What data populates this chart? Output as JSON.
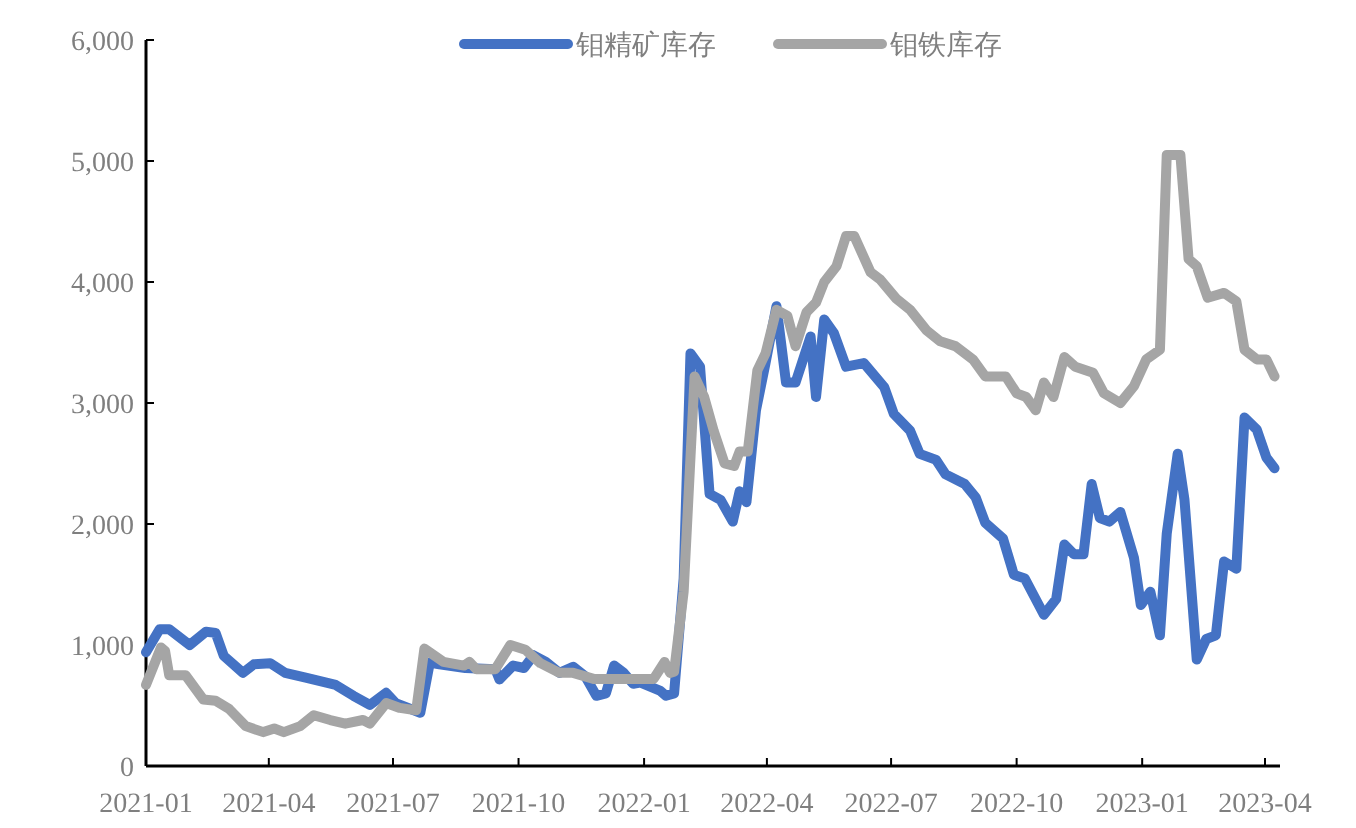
{
  "chart_data": {
    "type": "line",
    "legend": "top",
    "line_style": "solid",
    "xlim": [
      "2021-01-01",
      "2023-04-12"
    ],
    "xticks": [
      "2021-01",
      "2021-04",
      "2021-07",
      "2021-10",
      "2022-01",
      "2022-04",
      "2022-07",
      "2022-10",
      "2023-01",
      "2023-04"
    ],
    "ylim": [
      0,
      6000
    ],
    "yticks": [
      0,
      {
        "value": 1000,
        "label": "1,000"
      },
      {
        "value": 2000,
        "label": "2,000"
      },
      {
        "value": 3000,
        "label": "3,000"
      },
      {
        "value": 4000,
        "label": "4,000"
      },
      {
        "value": 5000,
        "label": "5,000"
      },
      {
        "value": 6000,
        "label": "6,000"
      }
    ],
    "series": [
      {
        "name": "钼精矿库存",
        "color": "#4472c4",
        "x": [
          "2021-01-01",
          "2021-01-11",
          "2021-01-18",
          "2021-02-02",
          "2021-02-14",
          "2021-02-21",
          "2021-02-27",
          "2021-03-13",
          "2021-03-21",
          "2021-04-02",
          "2021-04-13",
          "2021-04-28",
          "2021-05-20",
          "2021-06-02",
          "2021-06-14",
          "2021-06-26",
          "2021-07-03",
          "2021-07-21",
          "2021-07-28",
          "2021-08-04",
          "2021-08-23",
          "2021-09-14",
          "2021-09-17",
          "2021-09-27",
          "2021-10-05",
          "2021-10-12",
          "2021-10-21",
          "2021-10-31",
          "2021-11-10",
          "2021-11-19",
          "2021-11-27",
          "2021-12-04",
          "2021-12-10",
          "2021-12-17",
          "2021-12-24",
          "2021-12-29",
          "2022-01-13",
          "2022-01-17",
          "2022-01-23",
          "2022-01-30",
          "2022-02-04",
          "2022-02-11",
          "2022-02-18",
          "2022-02-26",
          "2022-03-07",
          "2022-03-12",
          "2022-03-17",
          "2022-03-24",
          "2022-03-31",
          "2022-04-08",
          "2022-04-15",
          "2022-04-22",
          "2022-05-03",
          "2022-05-07",
          "2022-05-13",
          "2022-05-20",
          "2022-05-29",
          "2022-06-11",
          "2022-06-26",
          "2022-07-03",
          "2022-07-15",
          "2022-07-22",
          "2022-08-03",
          "2022-08-10",
          "2022-08-24",
          "2022-09-01",
          "2022-09-08",
          "2022-09-21",
          "2022-09-29",
          "2022-10-07",
          "2022-10-21",
          "2022-10-30",
          "2022-11-05",
          "2022-11-12",
          "2022-11-19",
          "2022-11-25",
          "2022-12-01",
          "2022-12-08",
          "2022-12-16",
          "2022-12-26",
          "2022-12-31",
          "2023-01-07",
          "2023-01-14",
          "2023-01-19",
          "2023-01-27",
          "2023-02-01",
          "2023-02-10",
          "2023-02-17",
          "2023-02-24",
          "2023-03-02",
          "2023-03-11",
          "2023-03-17",
          "2023-03-26",
          "2023-04-02",
          "2023-04-08"
        ],
        "values": [
          940,
          1130,
          1130,
          1000,
          1110,
          1100,
          910,
          770,
          840,
          850,
          770,
          730,
          670,
          580,
          505,
          605,
          520,
          440,
          855,
          840,
          810,
          800,
          715,
          830,
          810,
          915,
          860,
          770,
          820,
          740,
          580,
          600,
          830,
          770,
          680,
          690,
          620,
          580,
          600,
          1550,
          3410,
          3300,
          2250,
          2200,
          2020,
          2270,
          2180,
          2940,
          3330,
          3800,
          3170,
          3170,
          3550,
          3050,
          3690,
          3580,
          3300,
          3330,
          3130,
          2910,
          2770,
          2580,
          2530,
          2410,
          2330,
          2220,
          2010,
          1880,
          1580,
          1550,
          1250,
          1380,
          1830,
          1750,
          1750,
          2330,
          2050,
          2020,
          2100,
          1720,
          1330,
          1440,
          1080,
          1920,
          2580,
          2200,
          880,
          1050,
          1080,
          1690,
          1630,
          2880,
          2780,
          2550,
          2460
        ]
      },
      {
        "name": "钼铁库存",
        "color": "#a5a5a5",
        "x": [
          "2021-01-01",
          "2021-01-12",
          "2021-01-15",
          "2021-01-18",
          "2021-01-30",
          "2021-02-12",
          "2021-02-21",
          "2021-03-03",
          "2021-03-15",
          "2021-03-28",
          "2021-04-05",
          "2021-04-12",
          "2021-04-24",
          "2021-05-04",
          "2021-05-16",
          "2021-05-27",
          "2021-06-09",
          "2021-06-14",
          "2021-06-26",
          "2021-07-06",
          "2021-07-18",
          "2021-07-24",
          "2021-08-07",
          "2021-08-22",
          "2021-08-26",
          "2021-08-31",
          "2021-09-14",
          "2021-09-25",
          "2021-10-06",
          "2021-10-17",
          "2021-10-31",
          "2021-11-10",
          "2021-11-25",
          "2021-12-24",
          "2022-01-08",
          "2022-01-16",
          "2022-01-20",
          "2022-01-23",
          "2022-01-30",
          "2022-02-07",
          "2022-02-14",
          "2022-02-21",
          "2022-03-01",
          "2022-03-08",
          "2022-03-12",
          "2022-03-18",
          "2022-03-25",
          "2022-03-31",
          "2022-04-08",
          "2022-04-16",
          "2022-04-22",
          "2022-04-30",
          "2022-05-07",
          "2022-05-13",
          "2022-05-22",
          "2022-05-29",
          "2022-06-04",
          "2022-06-16",
          "2022-06-23",
          "2022-07-05",
          "2022-07-15",
          "2022-07-27",
          "2022-08-06",
          "2022-08-17",
          "2022-08-30",
          "2022-09-08",
          "2022-09-23",
          "2022-10-01",
          "2022-10-08",
          "2022-10-15",
          "2022-10-21",
          "2022-10-28",
          "2022-11-05",
          "2022-11-13",
          "2022-11-26",
          "2022-12-04",
          "2022-12-16",
          "2022-12-26",
          "2023-01-04",
          "2023-01-14",
          "2023-01-19",
          "2023-01-29",
          "2023-02-04",
          "2023-02-10",
          "2023-02-18",
          "2023-03-02",
          "2023-03-11",
          "2023-03-17",
          "2023-03-26",
          "2023-04-02",
          "2023-04-08"
        ],
        "values": [
          670,
          980,
          950,
          750,
          750,
          550,
          540,
          470,
          330,
          280,
          310,
          280,
          330,
          420,
          380,
          350,
          380,
          350,
          520,
          480,
          460,
          970,
          860,
          830,
          860,
          800,
          800,
          1000,
          960,
          850,
          770,
          770,
          720,
          720,
          720,
          860,
          770,
          780,
          1440,
          3220,
          3050,
          2770,
          2500,
          2480,
          2600,
          2600,
          3270,
          3410,
          3770,
          3720,
          3470,
          3750,
          3830,
          4000,
          4130,
          4380,
          4380,
          4080,
          4020,
          3860,
          3770,
          3600,
          3510,
          3470,
          3360,
          3220,
          3220,
          3080,
          3050,
          2940,
          3170,
          3050,
          3380,
          3300,
          3250,
          3080,
          3000,
          3140,
          3360,
          3440,
          5050,
          5050,
          4190,
          4130,
          3870,
          3910,
          3840,
          3440,
          3360,
          3360,
          3220
        ]
      }
    ]
  }
}
